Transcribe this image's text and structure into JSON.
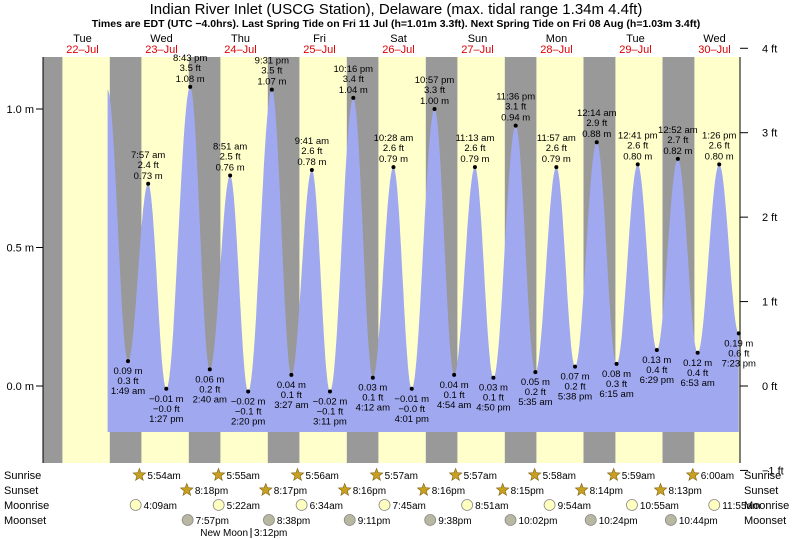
{
  "title": "Indian River Inlet (USCG Station), Delaware (max. tidal range 1.34m 4.4ft)",
  "subtitle": "Times are EDT (UTC −4.0hrs). Last Spring Tide on Fri 11 Jul (h=1.01m 3.3ft). Next Spring Tide on Fri 08 Aug (h=1.03m 3.4ft)",
  "days": [
    {
      "dow": "Tue",
      "date": "22–Jul"
    },
    {
      "dow": "Wed",
      "date": "23–Jul"
    },
    {
      "dow": "Thu",
      "date": "24–Jul"
    },
    {
      "dow": "Fri",
      "date": "25–Jul"
    },
    {
      "dow": "Sat",
      "date": "26–Jul"
    },
    {
      "dow": "Sun",
      "date": "27–Jul"
    },
    {
      "dow": "Mon",
      "date": "28–Jul"
    },
    {
      "dow": "Tue",
      "date": "29–Jul"
    },
    {
      "dow": "Wed",
      "date": "30–Jul"
    }
  ],
  "left_axis_labels": [
    "1.0 m",
    "0.5 m",
    "0.0 m"
  ],
  "right_axis_labels": [
    "4 ft",
    "3 ft",
    "2 ft",
    "1 ft",
    "0 ft",
    "−1 ft"
  ],
  "colors": {
    "night": "#999999",
    "day": "#ffffcc",
    "tide": "#a0a8f0",
    "header_date": "#dd0000",
    "sun_star": "#c8a020",
    "moonrise": "#ffffc0",
    "moonset": "#b8b8a0"
  },
  "chart_data": {
    "type": "area",
    "y_unit": "m",
    "ylim": [
      -0.3,
      1.31
    ],
    "x_unit": "hours since Tue 22-Jul 00:00",
    "events": [
      {
        "type": "high",
        "h": 1.07,
        "label": ""
      },
      {
        "type": "low",
        "time": "1:49 am",
        "t": 25.82,
        "m": "0.09 m",
        "ft": "0.3 ft",
        "h": 0.09
      },
      {
        "type": "high",
        "time": "7:57 am",
        "t": 31.95,
        "m": "0.73 m",
        "ft": "2.4 ft",
        "h": 0.73
      },
      {
        "type": "low",
        "time": "1:27 pm",
        "t": 37.45,
        "m": "−0.01 m",
        "ft": "−0.0 ft",
        "h": -0.01
      },
      {
        "type": "high",
        "time": "8:43 pm",
        "t": 44.72,
        "m": "1.08 m",
        "ft": "3.5 ft",
        "h": 1.08
      },
      {
        "type": "low",
        "time": "2:40 am",
        "t": 50.67,
        "m": "0.06 m",
        "ft": "0.2 ft",
        "h": 0.06
      },
      {
        "type": "high",
        "time": "8:51 am",
        "t": 56.85,
        "m": "0.76 m",
        "ft": "2.5 ft",
        "h": 0.76
      },
      {
        "type": "low",
        "time": "2:20 pm",
        "t": 62.33,
        "m": "−0.02 m",
        "ft": "−0.1 ft",
        "h": -0.02
      },
      {
        "type": "high",
        "time": "9:31 pm",
        "t": 69.52,
        "m": "1.07 m",
        "ft": "3.5 ft",
        "h": 1.07
      },
      {
        "type": "low",
        "time": "3:27 am",
        "t": 75.45,
        "m": "0.04 m",
        "ft": "0.1 ft",
        "h": 0.04
      },
      {
        "type": "high",
        "time": "9:41 am",
        "t": 81.68,
        "m": "0.78 m",
        "ft": "2.6 ft",
        "h": 0.78
      },
      {
        "type": "low",
        "time": "3:11 pm",
        "t": 87.18,
        "m": "−0.02 m",
        "ft": "−0.1 ft",
        "h": -0.02
      },
      {
        "type": "high",
        "time": "10:16 pm",
        "t": 94.27,
        "m": "1.04 m",
        "ft": "3.4 ft",
        "h": 1.04
      },
      {
        "type": "low",
        "time": "4:12 am",
        "t": 100.2,
        "m": "0.03 m",
        "ft": "0.1 ft",
        "h": 0.03
      },
      {
        "type": "high",
        "time": "10:28 am",
        "t": 106.47,
        "m": "0.79 m",
        "ft": "2.6 ft",
        "h": 0.79
      },
      {
        "type": "low",
        "time": "4:01 pm",
        "t": 112.02,
        "m": "−0.01 m",
        "ft": "−0.0 ft",
        "h": -0.01
      },
      {
        "type": "high",
        "time": "10:57 pm",
        "t": 118.95,
        "m": "1.00 m",
        "ft": "3.3 ft",
        "h": 1.0
      },
      {
        "type": "low",
        "time": "4:54 am",
        "t": 124.9,
        "m": "0.04 m",
        "ft": "0.1 ft",
        "h": 0.04
      },
      {
        "type": "high",
        "time": "11:13 am",
        "t": 131.22,
        "m": "0.79 m",
        "ft": "2.6 ft",
        "h": 0.79
      },
      {
        "type": "low",
        "time": "4:50 pm",
        "t": 136.83,
        "m": "0.03 m",
        "ft": "0.1 ft",
        "h": 0.03
      },
      {
        "type": "high",
        "time": "11:36 pm",
        "t": 143.6,
        "m": "0.94 m",
        "ft": "3.1 ft",
        "h": 0.94
      },
      {
        "type": "low",
        "time": "5:35 am",
        "t": 149.58,
        "m": "0.05 m",
        "ft": "0.2 ft",
        "h": 0.05
      },
      {
        "type": "high",
        "time": "11:57 am",
        "t": 155.95,
        "m": "0.79 m",
        "ft": "2.6 ft",
        "h": 0.79
      },
      {
        "type": "low",
        "time": "5:38 pm",
        "t": 161.63,
        "m": "0.07 m",
        "ft": "0.2 ft",
        "h": 0.07
      },
      {
        "type": "high",
        "time": "12:14 am",
        "t": 168.23,
        "m": "0.88 m",
        "ft": "2.9 ft",
        "h": 0.88
      },
      {
        "type": "low",
        "time": "6:15 am",
        "t": 174.25,
        "m": "0.08 m",
        "ft": "0.3 ft",
        "h": 0.08
      },
      {
        "type": "high",
        "time": "12:41 pm",
        "t": 180.68,
        "m": "0.80 m",
        "ft": "2.6 ft",
        "h": 0.8
      },
      {
        "type": "low",
        "time": "6:29 pm",
        "t": 186.48,
        "m": "0.13 m",
        "ft": "0.4 ft",
        "h": 0.13
      },
      {
        "type": "high",
        "time": "12:52 am",
        "t": 192.87,
        "m": "0.82 m",
        "ft": "2.7 ft",
        "h": 0.82
      },
      {
        "type": "low",
        "time": "6:53 am",
        "t": 198.88,
        "m": "0.12 m",
        "ft": "0.4 ft",
        "h": 0.12
      },
      {
        "type": "high",
        "time": "1:26 pm",
        "t": 205.43,
        "m": "0.80 m",
        "ft": "2.6 ft",
        "h": 0.8
      },
      {
        "type": "low",
        "time": "7:23 pm",
        "t": 211.38,
        "m": "0.19 m",
        "ft": "0.6 ft",
        "h": 0.19
      }
    ],
    "daylight": [
      [
        5.9,
        20.3
      ],
      [
        29.9,
        44.3
      ],
      [
        53.9,
        68.3
      ],
      [
        77.9,
        92.3
      ],
      [
        101.9,
        116.3
      ],
      [
        125.9,
        140.3
      ],
      [
        149.9,
        164.2
      ],
      [
        173.9,
        188.2
      ],
      [
        197.9,
        212.2
      ]
    ]
  },
  "bottom": {
    "row_labels": [
      "Sunrise",
      "Sunset",
      "Moonrise",
      "Moonset"
    ],
    "sunrise": [
      "5:54am",
      "5:55am",
      "5:56am",
      "5:57am",
      "5:57am",
      "5:58am",
      "5:59am",
      "6:00am"
    ],
    "sunset": [
      "8:18pm",
      "8:17pm",
      "8:16pm",
      "8:16pm",
      "8:15pm",
      "8:14pm",
      "8:13pm"
    ],
    "moonrise": [
      "4:09am",
      "5:22am",
      "6:34am",
      "7:45am",
      "8:51am",
      "9:54am",
      "10:55am",
      "11:55am"
    ],
    "moonset": [
      "7:57pm",
      "8:38pm",
      "9:11pm",
      "9:38pm",
      "10:02pm",
      "10:24pm",
      "10:44pm"
    ],
    "new_moon": "New Moon",
    "new_moon_time": "3:12pm"
  }
}
